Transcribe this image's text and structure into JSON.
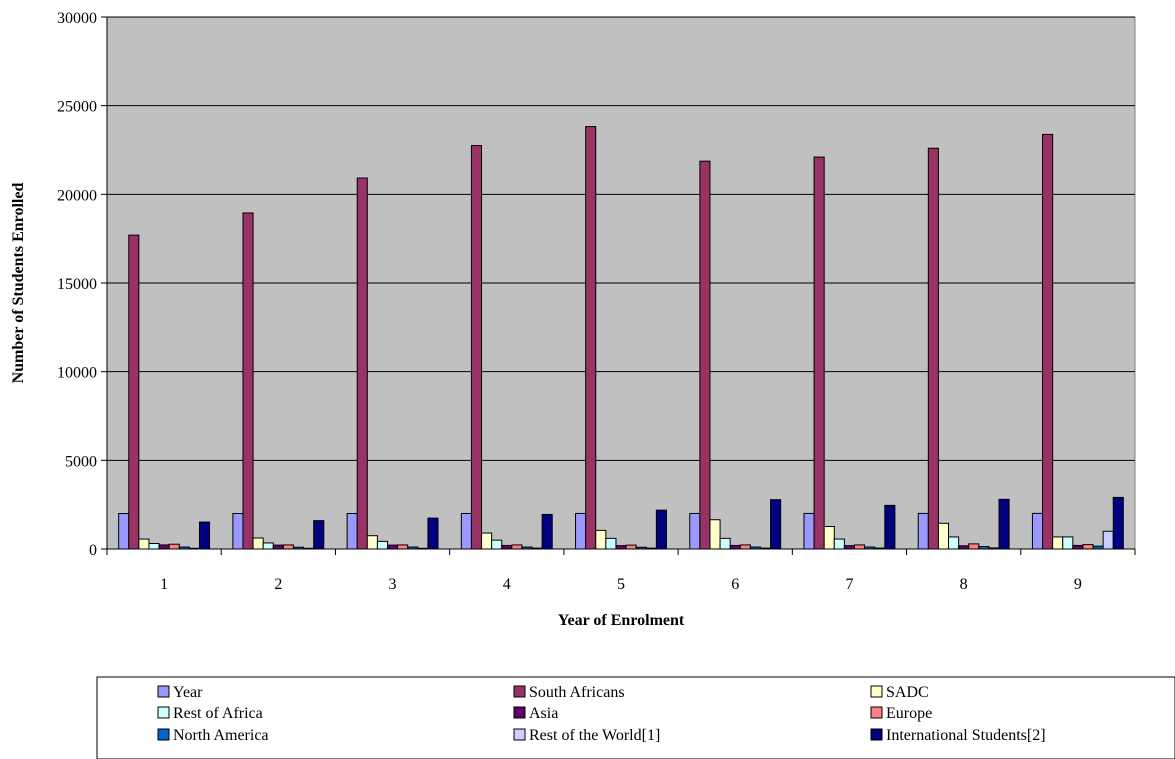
{
  "chart_data": {
    "type": "bar",
    "title": "",
    "xlabel": "Year of Enrolment",
    "ylabel": "Number of Students Enrolled",
    "ylim": [
      0,
      30000
    ],
    "yticks": [
      "0",
      "5000",
      "10000",
      "15000",
      "20000",
      "25000",
      "30000"
    ],
    "categories": [
      "1",
      "2",
      "3",
      "4",
      "5",
      "6",
      "7",
      "8",
      "9"
    ],
    "grid": true,
    "legend_position": "bottom",
    "series": [
      {
        "name": "Year",
        "color": "#9999ff",
        "values": [
          2000,
          2001,
          2002,
          2003,
          2004,
          2005,
          2006,
          2007,
          2008
        ]
      },
      {
        "name": "South Africans",
        "color": "#993366",
        "values": [
          17700,
          18950,
          20920,
          22750,
          23820,
          21870,
          22100,
          22600,
          23380
        ]
      },
      {
        "name": "SADC",
        "color": "#ffffcc",
        "values": [
          560,
          620,
          750,
          900,
          1050,
          1650,
          1270,
          1450,
          680
        ]
      },
      {
        "name": "Rest of Africa",
        "color": "#ccffff",
        "values": [
          310,
          340,
          430,
          500,
          600,
          600,
          560,
          680,
          680
        ]
      },
      {
        "name": "Asia",
        "color": "#660066",
        "values": [
          230,
          220,
          220,
          200,
          190,
          200,
          190,
          180,
          200
        ]
      },
      {
        "name": "Europe",
        "color": "#ff8080",
        "values": [
          270,
          230,
          230,
          230,
          220,
          230,
          230,
          290,
          250
        ]
      },
      {
        "name": "North America",
        "color": "#0066cc",
        "values": [
          110,
          100,
          110,
          110,
          100,
          110,
          110,
          140,
          160
        ]
      },
      {
        "name": "Rest of the World[1]",
        "color": "#ccccff",
        "values": [
          40,
          40,
          40,
          50,
          50,
          50,
          50,
          60,
          1000
        ]
      },
      {
        "name": "International Students[2]",
        "color": "#000080",
        "values": [
          1520,
          1600,
          1740,
          1950,
          2190,
          2780,
          2460,
          2800,
          2910
        ]
      }
    ]
  }
}
